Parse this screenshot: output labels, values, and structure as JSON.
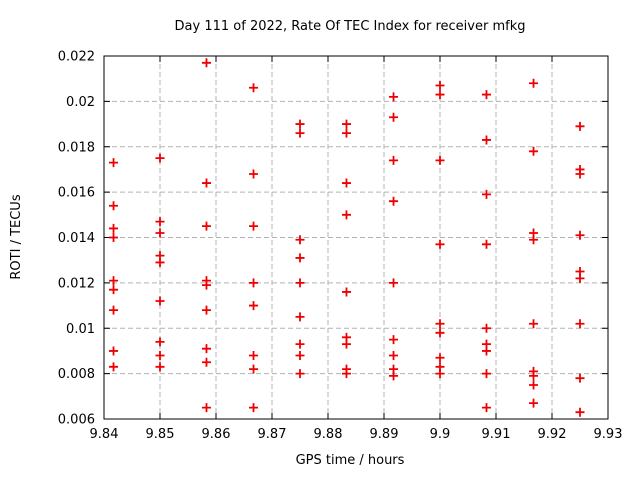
{
  "chart_data": {
    "type": "scatter",
    "title": "Day 111 of 2022, Rate Of TEC Index for receiver mfkg",
    "xlabel": "GPS time / hours",
    "ylabel": "ROTI / TECUs",
    "xlim": [
      9.84,
      9.93
    ],
    "ylim": [
      0.006,
      0.022
    ],
    "xticks": [
      9.84,
      9.85,
      9.86,
      9.87,
      9.88,
      9.89,
      9.9,
      9.91,
      9.92,
      9.93
    ],
    "xtick_labels": [
      "9.84",
      "9.85",
      "9.86",
      "9.87",
      "9.88",
      "9.89",
      "9.9",
      "9.91",
      "9.92",
      "9.93"
    ],
    "yticks": [
      0.006,
      0.008,
      0.01,
      0.012,
      0.014,
      0.016,
      0.018,
      0.02,
      0.022
    ],
    "ytick_labels": [
      "0.006",
      "0.008",
      "0.01",
      "0.012",
      "0.014",
      "0.016",
      "0.018",
      "0.02",
      "0.022"
    ],
    "grid": true,
    "grid_color": "#b3b3b3",
    "frame_color": "#000000",
    "legend": "none",
    "marker": {
      "shape": "plus",
      "color": "#ee0000",
      "size": 9,
      "stroke_width": 1.8
    },
    "series": [
      {
        "name": "ROTI",
        "points": [
          [
            9.8417,
            0.0173
          ],
          [
            9.8417,
            0.0154
          ],
          [
            9.8417,
            0.0144
          ],
          [
            9.8417,
            0.014
          ],
          [
            9.8417,
            0.0121
          ],
          [
            9.8417,
            0.0117
          ],
          [
            9.8417,
            0.0108
          ],
          [
            9.8417,
            0.009
          ],
          [
            9.8417,
            0.0083
          ],
          [
            9.85,
            0.0175
          ],
          [
            9.85,
            0.0147
          ],
          [
            9.85,
            0.0142
          ],
          [
            9.85,
            0.0132
          ],
          [
            9.85,
            0.0129
          ],
          [
            9.85,
            0.0112
          ],
          [
            9.85,
            0.0094
          ],
          [
            9.85,
            0.0088
          ],
          [
            9.85,
            0.0083
          ],
          [
            9.8583,
            0.0217
          ],
          [
            9.8583,
            0.0164
          ],
          [
            9.8583,
            0.0145
          ],
          [
            9.8583,
            0.0121
          ],
          [
            9.8583,
            0.0119
          ],
          [
            9.8583,
            0.0108
          ],
          [
            9.8583,
            0.0091
          ],
          [
            9.8583,
            0.0085
          ],
          [
            9.8583,
            0.0065
          ],
          [
            9.8667,
            0.0206
          ],
          [
            9.8667,
            0.0168
          ],
          [
            9.8667,
            0.0145
          ],
          [
            9.8667,
            0.012
          ],
          [
            9.8667,
            0.011
          ],
          [
            9.8667,
            0.0088
          ],
          [
            9.8667,
            0.0082
          ],
          [
            9.8667,
            0.0065
          ],
          [
            9.875,
            0.019
          ],
          [
            9.875,
            0.0186
          ],
          [
            9.875,
            0.0139
          ],
          [
            9.875,
            0.0131
          ],
          [
            9.875,
            0.012
          ],
          [
            9.875,
            0.0105
          ],
          [
            9.875,
            0.0093
          ],
          [
            9.875,
            0.0088
          ],
          [
            9.875,
            0.008
          ],
          [
            9.8833,
            0.019
          ],
          [
            9.8833,
            0.0186
          ],
          [
            9.8833,
            0.0164
          ],
          [
            9.8833,
            0.015
          ],
          [
            9.8833,
            0.0116
          ],
          [
            9.8833,
            0.0096
          ],
          [
            9.8833,
            0.0093
          ],
          [
            9.8833,
            0.0082
          ],
          [
            9.8833,
            0.008
          ],
          [
            9.8917,
            0.0202
          ],
          [
            9.8917,
            0.0193
          ],
          [
            9.8917,
            0.0174
          ],
          [
            9.8917,
            0.0156
          ],
          [
            9.8917,
            0.012
          ],
          [
            9.8917,
            0.0095
          ],
          [
            9.8917,
            0.0088
          ],
          [
            9.8917,
            0.0082
          ],
          [
            9.8917,
            0.0079
          ],
          [
            9.9,
            0.0207
          ],
          [
            9.9,
            0.0203
          ],
          [
            9.9,
            0.0174
          ],
          [
            9.9,
            0.0137
          ],
          [
            9.9,
            0.0102
          ],
          [
            9.9,
            0.0098
          ],
          [
            9.9,
            0.0087
          ],
          [
            9.9,
            0.0083
          ],
          [
            9.9,
            0.008
          ],
          [
            9.9083,
            0.0203
          ],
          [
            9.9083,
            0.0183
          ],
          [
            9.9083,
            0.0159
          ],
          [
            9.9083,
            0.0137
          ],
          [
            9.9083,
            0.01
          ],
          [
            9.9083,
            0.0093
          ],
          [
            9.9083,
            0.009
          ],
          [
            9.9083,
            0.008
          ],
          [
            9.9083,
            0.0065
          ],
          [
            9.9167,
            0.0208
          ],
          [
            9.9167,
            0.0178
          ],
          [
            9.9167,
            0.0142
          ],
          [
            9.9167,
            0.0139
          ],
          [
            9.9167,
            0.0102
          ],
          [
            9.9167,
            0.0081
          ],
          [
            9.9167,
            0.0079
          ],
          [
            9.9167,
            0.0075
          ],
          [
            9.9167,
            0.0067
          ],
          [
            9.925,
            0.0189
          ],
          [
            9.925,
            0.017
          ],
          [
            9.925,
            0.0168
          ],
          [
            9.925,
            0.0141
          ],
          [
            9.925,
            0.0125
          ],
          [
            9.925,
            0.0122
          ],
          [
            9.925,
            0.0102
          ],
          [
            9.925,
            0.0078
          ],
          [
            9.925,
            0.0063
          ]
        ]
      }
    ]
  }
}
